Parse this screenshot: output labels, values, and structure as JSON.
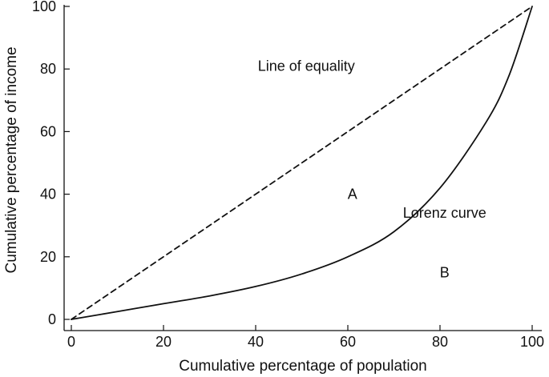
{
  "chart_data": {
    "type": "line",
    "title": "",
    "xlabel": "Cumulative percentage of population",
    "ylabel": "Cumulative percentage of income",
    "xlim": [
      0,
      100
    ],
    "ylim": [
      0,
      100
    ],
    "x_ticks": [
      "0",
      "20",
      "40",
      "60",
      "80",
      "100"
    ],
    "y_ticks": [
      "0",
      "20",
      "40",
      "60",
      "80",
      "100"
    ],
    "grid": false,
    "legend": "none",
    "series": [
      {
        "name": "Line of equality",
        "style": "dashed",
        "color": "#111111",
        "x": [
          0,
          100
        ],
        "y": [
          0,
          100
        ]
      },
      {
        "name": "Lorenz curve",
        "style": "solid",
        "color": "#111111",
        "x": [
          0,
          10,
          20,
          30,
          40,
          50,
          60,
          70,
          80,
          90,
          95,
          100
        ],
        "y": [
          0,
          2.5,
          5,
          7.5,
          10.5,
          14.5,
          20,
          28,
          42,
          63,
          78,
          100
        ]
      }
    ],
    "annotations": [
      {
        "text": "Line of equality",
        "x": 51,
        "y": 81
      },
      {
        "text": "A",
        "x": 61,
        "y": 40
      },
      {
        "text": "Lorenz curve",
        "x": 81,
        "y": 34
      },
      {
        "text": "B",
        "x": 81,
        "y": 15
      }
    ]
  }
}
